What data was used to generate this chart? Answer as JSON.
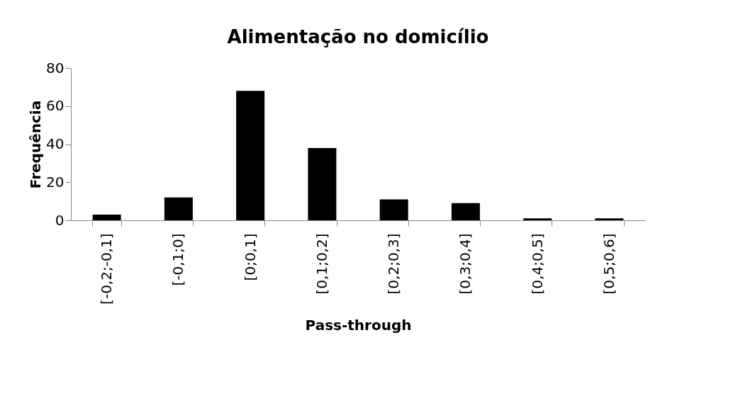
{
  "chart_data": {
    "type": "bar",
    "title": "Alimentação  no domicílio",
    "xlabel": "Pass-through",
    "ylabel": "Frequência",
    "categories": [
      "[-0,2;-0,1]",
      "[-0,1;0]",
      "[0;0,1]",
      "[0,1;0,2]",
      "[0,2;0,3]",
      "[0,3;0,4]",
      "[0,4;0,5]",
      "[0,5;0,6]"
    ],
    "values": [
      3,
      12,
      68,
      38,
      11,
      9,
      1,
      1
    ],
    "color": "#000000",
    "ylim": [
      0,
      80
    ],
    "yticks": [
      0,
      20,
      40,
      60,
      80
    ],
    "grid": false
  }
}
